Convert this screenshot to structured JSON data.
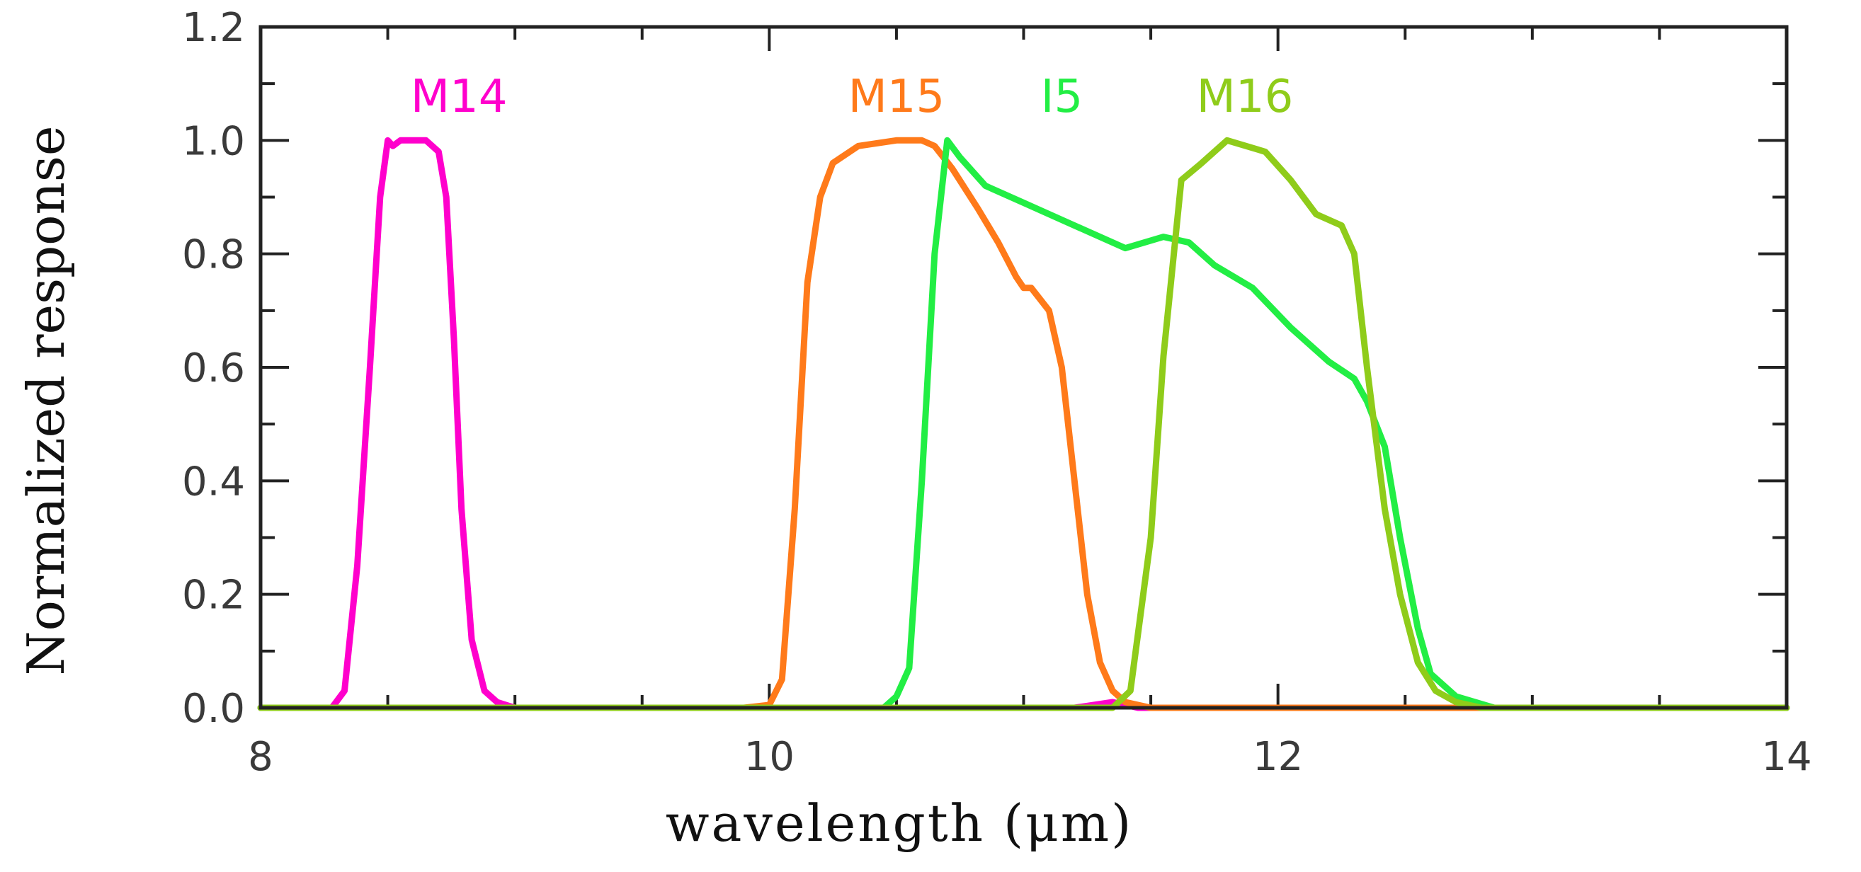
{
  "chart_data": {
    "type": "line",
    "title": "",
    "xlabel": "wavelength (μm)",
    "ylabel": "Normalized response",
    "xlim": [
      8,
      14
    ],
    "ylim": [
      0,
      1.2
    ],
    "xticks": [
      8,
      10,
      12,
      14
    ],
    "xtick_labels": [
      "8",
      "10",
      "12",
      "14"
    ],
    "yticks": [
      0.0,
      0.2,
      0.4,
      0.6,
      0.8,
      1.0,
      1.2
    ],
    "ytick_labels": [
      "0.0",
      "0.2",
      "0.4",
      "0.6",
      "0.8",
      "1.0",
      "1.2"
    ],
    "x_minor_step": 0.5,
    "y_minor_step": 0.1,
    "grid": false,
    "series": [
      {
        "name": "M14",
        "color": "#ff00cc",
        "x": [
          8.0,
          8.28,
          8.33,
          8.38,
          8.43,
          8.47,
          8.5,
          8.52,
          8.55,
          8.6,
          8.65,
          8.7,
          8.73,
          8.76,
          8.79,
          8.83,
          8.88,
          8.93,
          9.0,
          10.0,
          11.2,
          11.35,
          11.45,
          14.0
        ],
        "y": [
          0.0,
          0.0,
          0.03,
          0.25,
          0.6,
          0.9,
          1.0,
          0.99,
          1.0,
          1.0,
          1.0,
          0.98,
          0.9,
          0.65,
          0.35,
          0.12,
          0.03,
          0.01,
          0.0,
          0.0,
          0.0,
          0.01,
          0.0,
          0.0
        ]
      },
      {
        "name": "M15",
        "color": "#ff7a1a",
        "x": [
          8.0,
          9.9,
          10.0,
          10.05,
          10.1,
          10.15,
          10.2,
          10.25,
          10.35,
          10.5,
          10.6,
          10.65,
          10.72,
          10.82,
          10.9,
          10.97,
          11.0,
          11.03,
          11.1,
          11.15,
          11.2,
          11.25,
          11.3,
          11.35,
          11.4,
          11.5,
          14.0
        ],
        "y": [
          0.0,
          0.0,
          0.005,
          0.05,
          0.35,
          0.75,
          0.9,
          0.96,
          0.99,
          1.0,
          1.0,
          0.99,
          0.95,
          0.88,
          0.82,
          0.76,
          0.74,
          0.74,
          0.7,
          0.6,
          0.4,
          0.2,
          0.08,
          0.03,
          0.01,
          0.0,
          0.0
        ]
      },
      {
        "name": "I5",
        "color": "#22ee44",
        "x": [
          8.0,
          10.45,
          10.5,
          10.55,
          10.6,
          10.65,
          10.7,
          10.75,
          10.85,
          11.0,
          11.2,
          11.4,
          11.55,
          11.65,
          11.75,
          11.9,
          12.05,
          12.2,
          12.3,
          12.35,
          12.42,
          12.48,
          12.55,
          12.6,
          12.7,
          12.85,
          14.0
        ],
        "y": [
          0.0,
          0.0,
          0.02,
          0.07,
          0.4,
          0.8,
          1.0,
          0.97,
          0.92,
          0.89,
          0.85,
          0.81,
          0.83,
          0.82,
          0.78,
          0.74,
          0.67,
          0.61,
          0.58,
          0.54,
          0.46,
          0.3,
          0.14,
          0.06,
          0.02,
          0.0,
          0.0
        ]
      },
      {
        "name": "M16",
        "color": "#8fcc1a",
        "x": [
          8.0,
          11.35,
          11.42,
          11.5,
          11.55,
          11.62,
          11.7,
          11.8,
          11.95,
          12.05,
          12.15,
          12.25,
          12.3,
          12.35,
          12.42,
          12.48,
          12.55,
          12.62,
          12.7,
          12.8,
          14.0
        ],
        "y": [
          0.0,
          0.0,
          0.03,
          0.3,
          0.62,
          0.93,
          0.96,
          1.0,
          0.98,
          0.93,
          0.87,
          0.85,
          0.8,
          0.6,
          0.35,
          0.2,
          0.08,
          0.03,
          0.01,
          0.0,
          0.0
        ]
      }
    ]
  }
}
